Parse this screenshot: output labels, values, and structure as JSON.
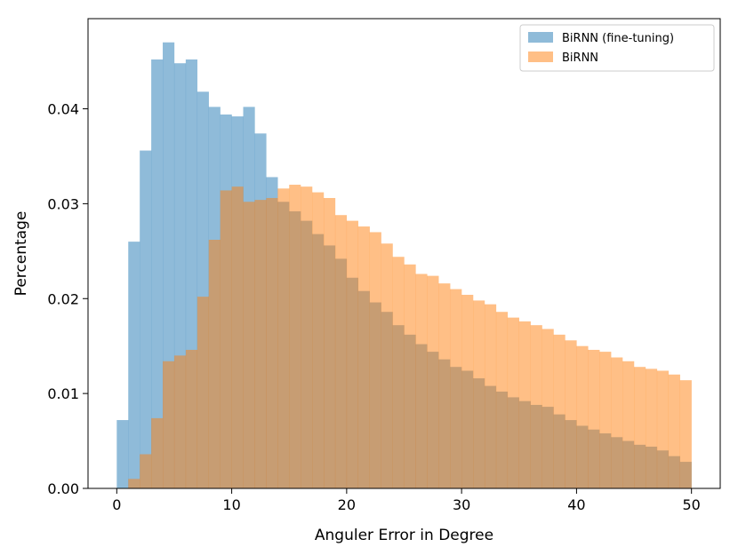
{
  "chart_data": {
    "type": "histogram",
    "title": "",
    "xlabel": "Anguler Error in Degree",
    "ylabel": "Percentage",
    "xlim": [
      -2.5,
      52.5
    ],
    "ylim": [
      0,
      0.0495
    ],
    "x_ticks": [
      0,
      10,
      20,
      30,
      40,
      50
    ],
    "x_tick_labels": [
      "0",
      "10",
      "20",
      "30",
      "40",
      "50"
    ],
    "y_ticks": [
      0,
      0.01,
      0.02,
      0.03,
      0.04
    ],
    "y_tick_labels": [
      "0.00",
      "0.01",
      "0.02",
      "0.03",
      "0.04"
    ],
    "grid": false,
    "legend_position": "top-right",
    "bin_edges": [
      0,
      1,
      2,
      3,
      4,
      5,
      6,
      7,
      8,
      9,
      10,
      11,
      12,
      13,
      14,
      15,
      16,
      17,
      18,
      19,
      20,
      21,
      22,
      23,
      24,
      25,
      26,
      27,
      28,
      29,
      30,
      31,
      32,
      33,
      34,
      35,
      36,
      37,
      38,
      39,
      40,
      41,
      42,
      43,
      44,
      45,
      46,
      47,
      48,
      49,
      50
    ],
    "series": [
      {
        "name": "BiRNN (fine-tuning)",
        "color": "#1f77b4",
        "opacity": 0.5,
        "values": [
          0.0072,
          0.026,
          0.0356,
          0.0452,
          0.047,
          0.0448,
          0.0452,
          0.0418,
          0.0402,
          0.0394,
          0.0392,
          0.0402,
          0.0374,
          0.0328,
          0.0302,
          0.0292,
          0.0282,
          0.0268,
          0.0256,
          0.0242,
          0.0222,
          0.0208,
          0.0196,
          0.0186,
          0.0172,
          0.0162,
          0.0152,
          0.0144,
          0.0136,
          0.0128,
          0.0124,
          0.0116,
          0.0108,
          0.0102,
          0.0096,
          0.0092,
          0.0088,
          0.0086,
          0.0078,
          0.0072,
          0.0066,
          0.0062,
          0.0058,
          0.0054,
          0.005,
          0.0046,
          0.0044,
          0.004,
          0.0034,
          0.0028
        ]
      },
      {
        "name": "BiRNN",
        "color": "#ff7f0e",
        "opacity": 0.5,
        "values": [
          0.0,
          0.001,
          0.0036,
          0.0074,
          0.0134,
          0.014,
          0.0146,
          0.0202,
          0.0262,
          0.0314,
          0.0318,
          0.0302,
          0.0304,
          0.0306,
          0.0316,
          0.032,
          0.0318,
          0.0312,
          0.0306,
          0.0288,
          0.0282,
          0.0276,
          0.027,
          0.0258,
          0.0244,
          0.0236,
          0.0226,
          0.0224,
          0.0216,
          0.021,
          0.0204,
          0.0198,
          0.0194,
          0.0186,
          0.018,
          0.0176,
          0.0172,
          0.0168,
          0.0162,
          0.0156,
          0.015,
          0.0146,
          0.0144,
          0.0138,
          0.0134,
          0.0128,
          0.0126,
          0.0124,
          0.012,
          0.0114
        ]
      }
    ]
  }
}
